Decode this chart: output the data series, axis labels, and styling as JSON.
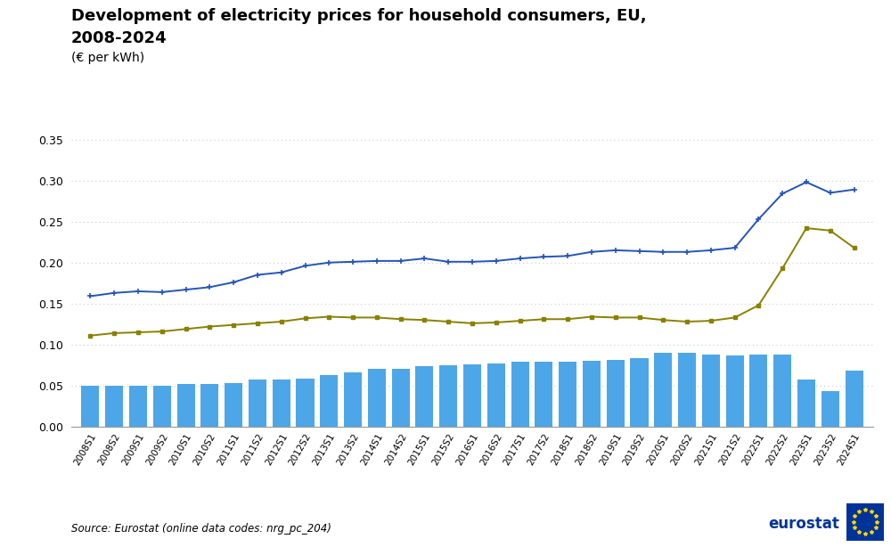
{
  "title_line1": "Development of electricity prices for household consumers, EU,",
  "title_line2": "2008-2024",
  "subtitle": "(€ per kWh)",
  "source": "Source: Eurostat (online data codes: nrg_pc_204)",
  "categories": [
    "2008S1",
    "2008S2",
    "2009S1",
    "2009S2",
    "2010S1",
    "2010S2",
    "2011S1",
    "2011S2",
    "2012S1",
    "2012S2",
    "2013S1",
    "2013S2",
    "2014S1",
    "2014S2",
    "2015S1",
    "2015S2",
    "2016S1",
    "2016S2",
    "2017S1",
    "2017S2",
    "2018S1",
    "2018S2",
    "2019S1",
    "2019S2",
    "2020S1",
    "2020S2",
    "2021S1",
    "2021S2",
    "2022S1",
    "2022S2",
    "2023S1",
    "2023S2",
    "2024S1"
  ],
  "prices_including_taxes": [
    0.159,
    0.163,
    0.165,
    0.164,
    0.167,
    0.17,
    0.176,
    0.185,
    0.188,
    0.196,
    0.2,
    0.201,
    0.202,
    0.202,
    0.205,
    0.201,
    0.201,
    0.202,
    0.205,
    0.207,
    0.208,
    0.213,
    0.215,
    0.214,
    0.213,
    0.213,
    0.215,
    0.218,
    0.253,
    0.284,
    0.298,
    0.285,
    0.289
  ],
  "prices_excluding_taxes": [
    0.111,
    0.114,
    0.115,
    0.116,
    0.119,
    0.122,
    0.124,
    0.126,
    0.128,
    0.132,
    0.134,
    0.133,
    0.133,
    0.131,
    0.13,
    0.128,
    0.126,
    0.127,
    0.129,
    0.131,
    0.131,
    0.134,
    0.133,
    0.133,
    0.13,
    0.128,
    0.129,
    0.133,
    0.148,
    0.193,
    0.242,
    0.239,
    0.218
  ],
  "taxes_and_levies": [
    0.05,
    0.05,
    0.05,
    0.05,
    0.052,
    0.052,
    0.053,
    0.057,
    0.057,
    0.059,
    0.063,
    0.066,
    0.071,
    0.071,
    0.074,
    0.075,
    0.076,
    0.077,
    0.079,
    0.079,
    0.079,
    0.08,
    0.081,
    0.083,
    0.09,
    0.09,
    0.088,
    0.087,
    0.088,
    0.088,
    0.057,
    0.043,
    0.068
  ],
  "bar_color": "#4da6e8",
  "line_color_incl": "#2255bb",
  "line_color_excl": "#8b8000",
  "ylim": [
    0.0,
    0.36
  ],
  "yticks": [
    0.0,
    0.05,
    0.1,
    0.15,
    0.2,
    0.25,
    0.3,
    0.35
  ],
  "background_color": "#ffffff",
  "grid_color": "#cccccc"
}
